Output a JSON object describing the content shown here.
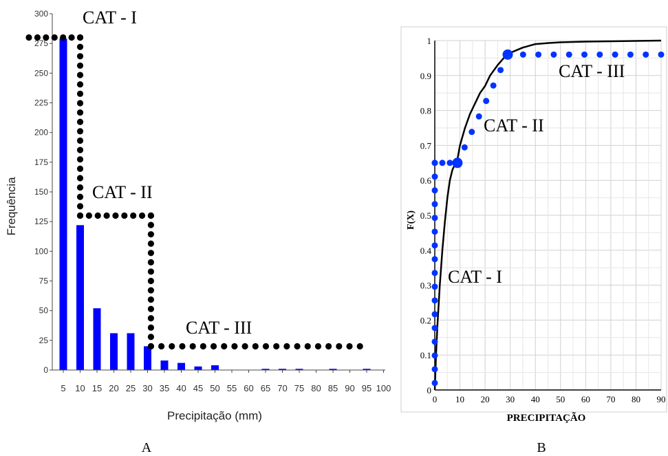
{
  "panels": {
    "left_label": "A",
    "right_label": "B"
  },
  "colors": {
    "bar": "#0000ff",
    "dots_a": "#000000",
    "dots_b": "#0033ff",
    "curve": "#000000",
    "grid": "#d0d0d0"
  },
  "chart_data": [
    {
      "type": "bar",
      "panel": "A",
      "xlabel": "Precipitação (mm)",
      "ylabel": "Frequência",
      "categories": [
        "5",
        "10",
        "15",
        "20",
        "25",
        "30",
        "35",
        "40",
        "45",
        "50",
        "55",
        "60",
        "65",
        "70",
        "75",
        "80",
        "85",
        "90",
        "95",
        "100"
      ],
      "values": [
        279,
        122,
        52,
        31,
        31,
        20,
        8,
        6,
        3,
        4,
        0,
        0,
        1,
        1,
        1,
        0,
        1,
        0,
        1,
        0
      ],
      "yticks": [
        0,
        25,
        50,
        75,
        100,
        125,
        150,
        175,
        200,
        225,
        250,
        275,
        300
      ],
      "ylim": [
        0,
        300
      ],
      "grid": false,
      "annotations": [
        {
          "text": "CAT - I",
          "x": 10,
          "y": 300
        },
        {
          "text": "CAT - II",
          "x": 10,
          "y": 140
        },
        {
          "text": "CAT - III",
          "x": 35,
          "y": 30
        }
      ],
      "category_boundaries": {
        "cat1": {
          "x_to": 10,
          "y": 280
        },
        "cat2": {
          "x_from": 10,
          "x_to": 31,
          "y": 130
        },
        "cat3": {
          "x_from": 31,
          "x_to": 93,
          "y": 20
        }
      }
    },
    {
      "type": "line",
      "panel": "B",
      "xlabel": "PRECIPITAÇÃO",
      "ylabel": "F(X)",
      "xlim": [
        0,
        90
      ],
      "ylim": [
        0,
        1
      ],
      "xticks": [
        0,
        10,
        20,
        30,
        40,
        50,
        60,
        70,
        80,
        90
      ],
      "yticks": [
        "0",
        "0.1",
        "0.2",
        "0.3",
        "0.4",
        "0.5",
        "0.6",
        "0.7",
        "0.8",
        "0.9",
        "1"
      ],
      "grid": true,
      "cdf_curve": {
        "x": [
          0,
          0.5,
          1,
          2,
          3,
          4,
          5,
          6,
          7,
          8,
          9,
          10,
          12,
          14,
          16,
          18,
          20,
          22,
          25,
          28,
          30,
          35,
          40,
          45,
          50,
          60,
          70,
          80,
          90
        ],
        "y": [
          0,
          0.1,
          0.18,
          0.3,
          0.4,
          0.48,
          0.55,
          0.6,
          0.63,
          0.645,
          0.66,
          0.7,
          0.75,
          0.79,
          0.82,
          0.85,
          0.87,
          0.9,
          0.93,
          0.955,
          0.965,
          0.98,
          0.99,
          0.993,
          0.995,
          0.997,
          0.998,
          0.999,
          1
        ]
      },
      "category_points": [
        {
          "x": 9,
          "y": 0.65
        },
        {
          "x": 29,
          "y": 0.96
        }
      ],
      "annotations": [
        {
          "text": "CAT - I",
          "x": 5,
          "y": 0.34
        },
        {
          "text": "CAT - II",
          "x": 19,
          "y": 0.76
        },
        {
          "text": "CAT - III",
          "x": 50,
          "y": 0.91
        }
      ],
      "category_dots": {
        "cat1_vertical": {
          "x": 0,
          "y_from": 0.02,
          "y_to": 0.65
        },
        "cat1_horizontal": {
          "y": 0.65,
          "x_from": 0,
          "x_to": 9
        },
        "cat2_diagonal": {
          "x_from": 9,
          "y_from": 0.65,
          "x_to": 29,
          "y_to": 0.96
        },
        "cat3_horizontal": {
          "y": 0.96,
          "x_from": 29,
          "x_to": 90
        }
      }
    }
  ]
}
